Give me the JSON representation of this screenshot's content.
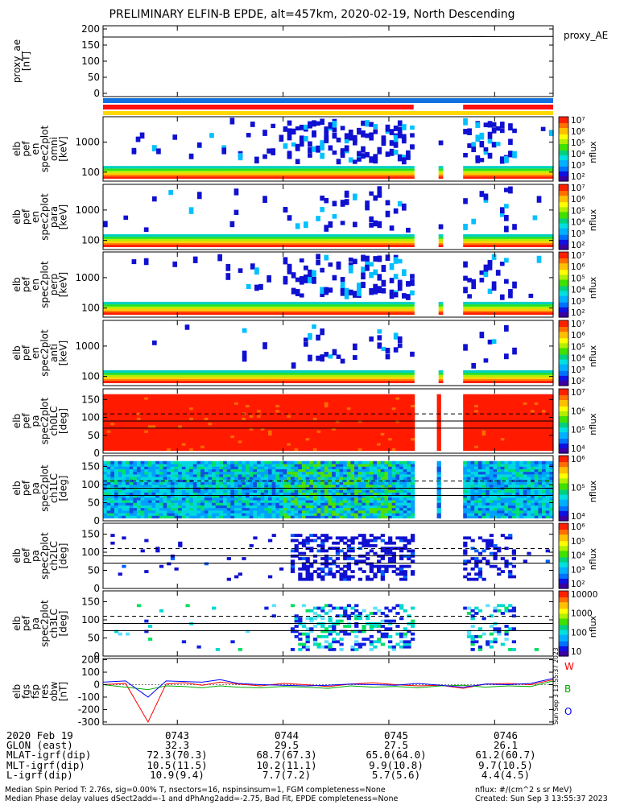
{
  "title": "PRELIMINARY ELFIN-B EPDE, alt=457km, 2020-02-19, North Descending",
  "side_stamp": "Sun Sep 3 13:55:37 2023",
  "chart_data": [
    {
      "id": "proxy_ae",
      "type": "line",
      "ylabel": [
        "proxy_ae",
        "[nT]"
      ],
      "legend": "proxy_AE",
      "ylim": [
        -10,
        210
      ],
      "yticks": [
        0,
        50,
        100,
        150,
        200
      ],
      "series": [
        {
          "name": "proxy_ae",
          "x": [
            0,
            0.53,
            1
          ],
          "values": [
            175,
            175,
            177
          ]
        }
      ]
    },
    {
      "id": "pef_en_omni",
      "type": "heatmap",
      "ylabel": [
        "elb",
        "pef",
        "en",
        "spec2plot",
        "omni",
        "[keV]"
      ],
      "ylim_log": [
        50,
        7000
      ],
      "yticks": [
        100,
        1000
      ],
      "colorbar": {
        "label": "nflux",
        "ticks": [
          "10⁷",
          "10⁶",
          "10⁵",
          "10⁴",
          "10³",
          "10²"
        ]
      }
    },
    {
      "id": "pef_en_para",
      "type": "heatmap",
      "ylabel": [
        "elb",
        "pef",
        "en",
        "spec2plot",
        "para",
        "[keV]"
      ],
      "ylim_log": [
        50,
        7000
      ],
      "yticks": [
        100,
        1000
      ],
      "colorbar": {
        "label": "nflux",
        "ticks": [
          "10⁷",
          "10⁶",
          "10⁵",
          "10⁴",
          "10³",
          "10²"
        ]
      }
    },
    {
      "id": "pef_en_perp",
      "type": "heatmap",
      "ylabel": [
        "elb",
        "pef",
        "en",
        "spec2plot",
        "perp",
        "[keV]"
      ],
      "ylim_log": [
        50,
        7000
      ],
      "yticks": [
        100,
        1000
      ],
      "colorbar": {
        "label": "nflux",
        "ticks": [
          "10⁷",
          "10⁶",
          "10⁵",
          "10⁴",
          "10³",
          "10²"
        ]
      }
    },
    {
      "id": "pef_en_anti",
      "type": "heatmap",
      "ylabel": [
        "elb",
        "pef",
        "en",
        "spec2plot",
        "anti",
        "[keV]"
      ],
      "ylim_log": [
        50,
        7000
      ],
      "yticks": [
        100,
        1000
      ],
      "colorbar": {
        "label": "nflux",
        "ticks": [
          "10⁷",
          "10⁶",
          "10⁵",
          "10⁴",
          "10³",
          "10²"
        ]
      }
    },
    {
      "id": "pef_pa_ch0LC",
      "type": "heatmap",
      "ylabel": [
        "elb",
        "pef",
        "pa",
        "spec2plot",
        "ch0LC",
        "[deg]"
      ],
      "ylim": [
        0,
        180
      ],
      "yticks": [
        0,
        50,
        100,
        150
      ],
      "refs": {
        "solid": [
          90,
          70
        ],
        "dashed": [
          110
        ]
      },
      "colorbar": {
        "label": "nflux",
        "ticks": [
          "10⁷",
          "10⁶",
          "10⁵",
          "10⁴"
        ]
      }
    },
    {
      "id": "pef_pa_ch1LC",
      "type": "heatmap",
      "ylabel": [
        "elb",
        "pef",
        "pa",
        "spec2plot",
        "ch1LC",
        "[deg]"
      ],
      "ylim": [
        0,
        180
      ],
      "yticks": [
        0,
        50,
        100,
        150
      ],
      "refs": {
        "solid": [
          90,
          70
        ],
        "dashed": [
          110
        ]
      },
      "colorbar": {
        "label": "nflux",
        "ticks": [
          "10⁶",
          "10⁵",
          "10⁴"
        ]
      }
    },
    {
      "id": "pef_pa_ch2LC",
      "type": "heatmap",
      "ylabel": [
        "elb",
        "pef",
        "pa",
        "spec2plot",
        "ch2LC",
        "[deg]"
      ],
      "ylim": [
        0,
        180
      ],
      "yticks": [
        0,
        50,
        100,
        150
      ],
      "refs": {
        "solid": [
          90,
          70
        ],
        "dashed": [
          110
        ]
      },
      "colorbar": {
        "label": "nflux",
        "ticks": [
          "10⁶",
          "10⁵",
          "10⁴",
          "10³",
          "10²"
        ]
      }
    },
    {
      "id": "pef_pa_ch3LC",
      "type": "heatmap",
      "ylabel": [
        "elb",
        "pef",
        "pa",
        "spec2plot",
        "ch3LC",
        "[deg]"
      ],
      "ylim": [
        0,
        180
      ],
      "yticks": [
        0,
        50,
        100,
        150
      ],
      "refs": {
        "solid": [
          90,
          70
        ],
        "dashed": [
          110
        ]
      },
      "colorbar": {
        "label": "nflux",
        "ticks": [
          "10000",
          "1000",
          "100",
          "10"
        ]
      }
    },
    {
      "id": "fgs_res",
      "type": "line",
      "ylabel": [
        "elb",
        "fgs",
        "fsp",
        "res",
        "obw",
        "[nT]"
      ],
      "ylim": [
        -320,
        210
      ],
      "yticks": [
        -300,
        -200,
        -100,
        0,
        100,
        200
      ],
      "legend": [
        "W",
        "B",
        "O"
      ],
      "series": [
        {
          "name": "W",
          "color": "#ff0000",
          "x": [
            0,
            0.05,
            0.1,
            0.14,
            0.18,
            0.22,
            0.26,
            0.3,
            0.35,
            0.4,
            0.45,
            0.5,
            0.55,
            0.6,
            0.65,
            0.7,
            0.75,
            0.8,
            0.85,
            0.9,
            0.95,
            1
          ],
          "values": [
            0,
            10,
            -300,
            5,
            15,
            -5,
            20,
            5,
            -10,
            10,
            0,
            -15,
            5,
            15,
            0,
            -10,
            -5,
            -30,
            5,
            10,
            0,
            40
          ]
        },
        {
          "name": "B",
          "color": "#00aa00",
          "x": [
            0,
            0.05,
            0.1,
            0.14,
            0.18,
            0.22,
            0.26,
            0.3,
            0.35,
            0.4,
            0.45,
            0.5,
            0.55,
            0.6,
            0.65,
            0.7,
            0.75,
            0.8,
            0.85,
            0.9,
            0.95,
            1
          ],
          "values": [
            0,
            -20,
            -40,
            -10,
            -15,
            -25,
            -10,
            -20,
            -25,
            -15,
            -20,
            -30,
            -10,
            -20,
            -15,
            -25,
            -10,
            -5,
            -20,
            -10,
            -15,
            30
          ]
        },
        {
          "name": "O",
          "color": "#0000ff",
          "x": [
            0,
            0.05,
            0.1,
            0.14,
            0.18,
            0.22,
            0.26,
            0.3,
            0.35,
            0.4,
            0.45,
            0.5,
            0.55,
            0.6,
            0.65,
            0.7,
            0.75,
            0.8,
            0.85,
            0.9,
            0.95,
            1
          ],
          "values": [
            20,
            30,
            -100,
            30,
            25,
            20,
            40,
            10,
            0,
            -5,
            -10,
            -5,
            5,
            0,
            -5,
            10,
            -5,
            -20,
            5,
            0,
            10,
            50
          ]
        }
      ]
    }
  ],
  "time_axis": {
    "ticks": [
      "0743",
      "0744",
      "0745",
      "0746"
    ],
    "tick_positions": [
      0.165,
      0.4,
      0.635,
      0.87
    ]
  },
  "ephemeris": {
    "rows": [
      {
        "label": "2020 Feb 19",
        "values": [
          "0743",
          "0744",
          "0745",
          "0746"
        ]
      },
      {
        "label": "GLON (east)",
        "values": [
          "32.3",
          "29.5",
          "27.5",
          "26.1"
        ]
      },
      {
        "label": "MLAT-igrf(dip)",
        "values": [
          "72.3(70.3)",
          "68.7(67.3)",
          "65.0(64.0)",
          "61.2(60.7)"
        ]
      },
      {
        "label": "MLT-igrf(dip)",
        "values": [
          "10.5(11.5)",
          "10.2(11.1)",
          "9.9(10.8)",
          "9.7(10.5)"
        ]
      },
      {
        "label": "L-igrf(dip)",
        "values": [
          "10.9(9.4)",
          "7.7(7.2)",
          "5.7(5.6)",
          "4.4(4.5)"
        ]
      }
    ]
  },
  "footer": {
    "left1": "Median Spin Period T: 2.76s, sig=0.00% T, nsectors=16, nspinsinsum=1, FGM completeness=None",
    "left2": "Median Phase delay values dSect2add=-1 and dPhAng2add=-2.75, Bad Fit, EPDE completeness=None",
    "right1": "nflux: #/(cm^2 s sr MeV)",
    "right2": "Created: Sun Sep  3 13:55:37 2023"
  }
}
